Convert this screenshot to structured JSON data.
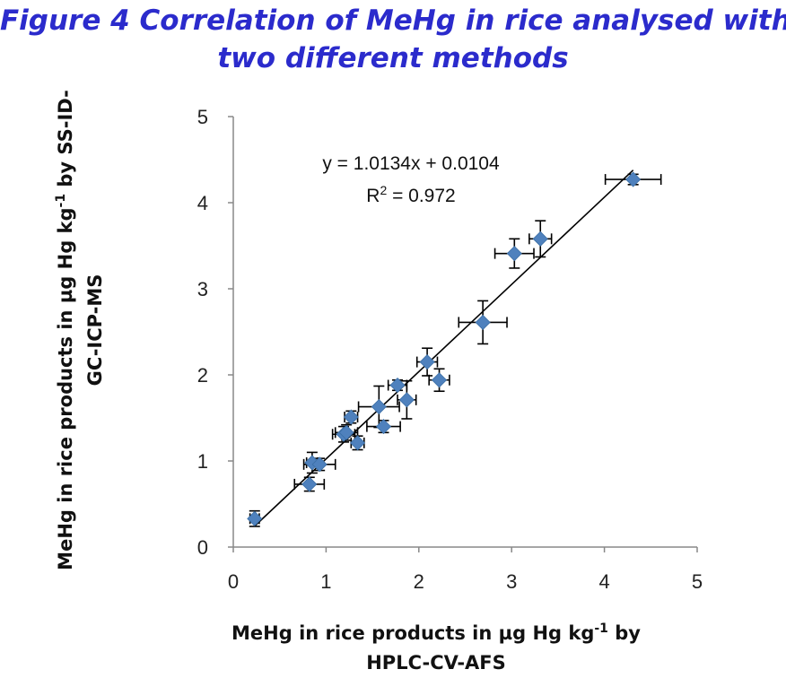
{
  "title": {
    "line1": "Figure 4 Correlation  of MeHg in rice analysed with",
    "line2": "two different methods"
  },
  "chart_data": {
    "type": "scatter",
    "title": "Figure 4 Correlation  of MeHg in rice analysed with two different methods",
    "xlabel": {
      "pre": "MeHg in rice products in µg Hg kg",
      "sup": "-1",
      "post": " by",
      "line2": "HPLC-CV-AFS"
    },
    "ylabel": {
      "pre": "MeHg in rice products in µg Hg kg",
      "sup": "-1",
      "post": " by SS-ID-",
      "line2": "GC-ICP-MS"
    },
    "xlim": [
      0,
      5
    ],
    "ylim": [
      0,
      5
    ],
    "xticks": [
      "0",
      "1",
      "2",
      "3",
      "4",
      "5"
    ],
    "yticks": [
      "0",
      "1",
      "2",
      "3",
      "4",
      "5"
    ],
    "grid": false,
    "marker_color": "#4f81bd",
    "points": [
      {
        "x": 0.23,
        "y": 0.33,
        "xerr": 0.05,
        "yerr": 0.09
      },
      {
        "x": 0.82,
        "y": 0.73,
        "xerr": 0.16,
        "yerr": 0.08
      },
      {
        "x": 0.85,
        "y": 0.98,
        "xerr": 0.06,
        "yerr": 0.12
      },
      {
        "x": 0.93,
        "y": 0.96,
        "xerr": 0.17,
        "yerr": 0.07
      },
      {
        "x": 1.19,
        "y": 1.31,
        "xerr": 0.12,
        "yerr": 0.09
      },
      {
        "x": 1.22,
        "y": 1.33,
        "xerr": 0.12,
        "yerr": 0.09
      },
      {
        "x": 1.27,
        "y": 1.51,
        "xerr": 0.07,
        "yerr": 0.07
      },
      {
        "x": 1.34,
        "y": 1.21,
        "xerr": 0.07,
        "yerr": 0.08
      },
      {
        "x": 1.57,
        "y": 1.63,
        "xerr": 0.22,
        "yerr": 0.24
      },
      {
        "x": 1.62,
        "y": 1.4,
        "xerr": 0.18,
        "yerr": 0.07
      },
      {
        "x": 1.77,
        "y": 1.88,
        "xerr": 0.1,
        "yerr": 0.06
      },
      {
        "x": 1.87,
        "y": 1.71,
        "xerr": 0.1,
        "yerr": 0.22
      },
      {
        "x": 2.09,
        "y": 2.15,
        "xerr": 0.11,
        "yerr": 0.16
      },
      {
        "x": 2.22,
        "y": 1.94,
        "xerr": 0.11,
        "yerr": 0.13
      },
      {
        "x": 2.69,
        "y": 2.61,
        "xerr": 0.26,
        "yerr": 0.25
      },
      {
        "x": 3.03,
        "y": 3.41,
        "xerr": 0.21,
        "yerr": 0.17
      },
      {
        "x": 3.31,
        "y": 3.58,
        "xerr": 0.12,
        "yerr": 0.21
      },
      {
        "x": 4.31,
        "y": 4.27,
        "xerr": 0.3,
        "yerr": 0.06
      }
    ],
    "trendline": {
      "slope": 1.0134,
      "intercept": 0.0104,
      "x_range": [
        0.23,
        4.31
      ]
    },
    "annotations": {
      "equation": "y = 1.0134x + 0.0104",
      "r2_pre": "R",
      "r2_sup": "2",
      "r2_post": " = 0.972"
    }
  }
}
